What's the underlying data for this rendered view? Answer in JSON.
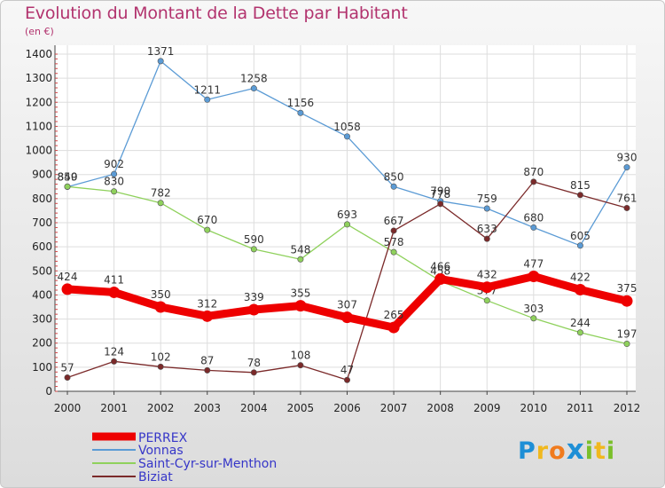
{
  "header": {
    "title": "Evolution du Montant de la Dette par Habitant",
    "unit": "(en €)"
  },
  "logo": {
    "text": "Proxiti",
    "colors": [
      "#1e8fd6",
      "#f0b81e",
      "#f07b1e",
      "#1e8fd6",
      "#7abf2a",
      "#f0b81e",
      "#7abf2a"
    ]
  },
  "chart_data": {
    "type": "line",
    "title": "Evolution du Montant de la Dette par Habitant",
    "ylabel": "(en €)",
    "xlabel": "",
    "x": [
      "2000",
      "2001",
      "2002",
      "2003",
      "2004",
      "2005",
      "2006",
      "2007",
      "2008",
      "2009",
      "2010",
      "2011",
      "2012"
    ],
    "ylim": [
      0,
      1400
    ],
    "yticks": [
      0,
      100,
      200,
      300,
      400,
      500,
      600,
      700,
      800,
      900,
      1000,
      1100,
      1200,
      1300,
      1400
    ],
    "grid": true,
    "legend_position": "bottom-left",
    "series": [
      {
        "name": "PERREX",
        "color": "#ee0000",
        "values": [
          424,
          411,
          350,
          312,
          339,
          355,
          307,
          265,
          466,
          432,
          477,
          422,
          375
        ],
        "labels": [
          "424",
          "411",
          "350",
          "312",
          "339",
          "355",
          "307",
          "265",
          "466",
          "432",
          "477",
          "422",
          "375"
        ]
      },
      {
        "name": "Vonnas",
        "color": "#5b9bd5",
        "values": [
          849,
          902,
          1371,
          1211,
          1258,
          1156,
          1058,
          850,
          790,
          759,
          680,
          605,
          930
        ],
        "labels": [
          "849",
          "902",
          "1371",
          "1211",
          "1258",
          "1156",
          "1058",
          "850",
          "790",
          "759",
          "680",
          "605",
          "930"
        ]
      },
      {
        "name": "Saint-Cyr-sur-Menthon",
        "color": "#8fd15c",
        "values": [
          850,
          830,
          782,
          670,
          590,
          548,
          693,
          578,
          458,
          377,
          303,
          244,
          197
        ],
        "labels": [
          "850",
          "830",
          "782",
          "670",
          "590",
          "548",
          "693",
          "578",
          "458",
          "377",
          "303",
          "244",
          "197"
        ]
      },
      {
        "name": "Biziat",
        "color": "#7b2a2a",
        "values": [
          57,
          124,
          102,
          87,
          78,
          108,
          47,
          667,
          778,
          633,
          870,
          815,
          761
        ],
        "labels": [
          "57",
          "124",
          "102",
          "87",
          "78",
          "108",
          "47",
          "667",
          "778",
          "633",
          "870",
          "815",
          "761"
        ]
      }
    ]
  }
}
